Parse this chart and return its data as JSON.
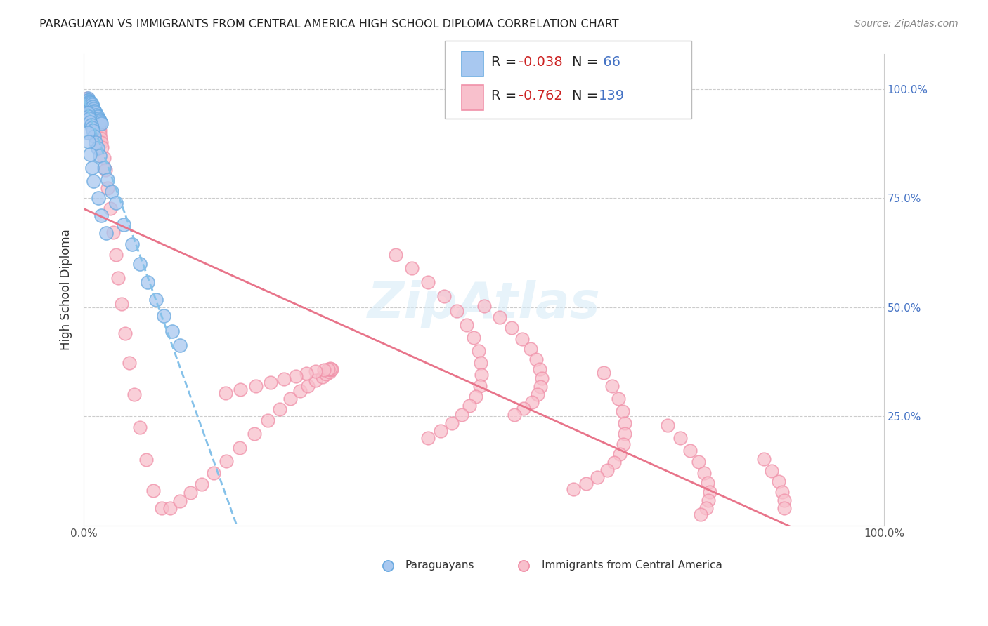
{
  "title": "PARAGUAYAN VS IMMIGRANTS FROM CENTRAL AMERICA HIGH SCHOOL DIPLOMA CORRELATION CHART",
  "source": "Source: ZipAtlas.com",
  "ylabel": "High School Diploma",
  "xlim": [
    0.0,
    1.0
  ],
  "ylim": [
    0.0,
    1.08
  ],
  "ytick_positions": [
    0.25,
    0.5,
    0.75,
    1.0
  ],
  "ytick_labels": [
    "25.0%",
    "50.0%",
    "75.0%",
    "100.0%"
  ],
  "grid_color": "#cccccc",
  "blue_face": "#a8c8f0",
  "blue_edge": "#6aaae0",
  "pink_face": "#f8c0cc",
  "pink_edge": "#f090a8",
  "blue_line_color": "#85C1E9",
  "pink_line_color": "#E8748A",
  "R_blue": -0.038,
  "N_blue": 66,
  "R_pink": -0.762,
  "N_pink": 139,
  "legend_label_blue": "Paraguayans",
  "legend_label_pink": "Immigrants from Central America",
  "blue_x": [
    0.005,
    0.005,
    0.005,
    0.006,
    0.006,
    0.007,
    0.007,
    0.007,
    0.008,
    0.008,
    0.008,
    0.009,
    0.009,
    0.009,
    0.01,
    0.01,
    0.01,
    0.011,
    0.011,
    0.012,
    0.012,
    0.013,
    0.013,
    0.014,
    0.014,
    0.015,
    0.015,
    0.016,
    0.016,
    0.017,
    0.018,
    0.019,
    0.02,
    0.021,
    0.022,
    0.005,
    0.006,
    0.007,
    0.008,
    0.009,
    0.01,
    0.011,
    0.013,
    0.015,
    0.017,
    0.02,
    0.025,
    0.03,
    0.035,
    0.04,
    0.05,
    0.06,
    0.07,
    0.08,
    0.09,
    0.1,
    0.11,
    0.12,
    0.005,
    0.006,
    0.008,
    0.01,
    0.012,
    0.018,
    0.022,
    0.028
  ],
  "blue_y": [
    0.98,
    0.975,
    0.97,
    0.975,
    0.968,
    0.972,
    0.965,
    0.958,
    0.97,
    0.963,
    0.955,
    0.968,
    0.96,
    0.952,
    0.965,
    0.958,
    0.95,
    0.96,
    0.952,
    0.955,
    0.948,
    0.95,
    0.943,
    0.948,
    0.94,
    0.945,
    0.938,
    0.94,
    0.932,
    0.938,
    0.933,
    0.93,
    0.928,
    0.925,
    0.922,
    0.945,
    0.938,
    0.932,
    0.925,
    0.918,
    0.912,
    0.905,
    0.892,
    0.878,
    0.865,
    0.848,
    0.82,
    0.793,
    0.765,
    0.74,
    0.69,
    0.645,
    0.6,
    0.558,
    0.518,
    0.48,
    0.445,
    0.413,
    0.9,
    0.88,
    0.85,
    0.82,
    0.79,
    0.75,
    0.71,
    0.67
  ],
  "pink_x": [
    0.004,
    0.005,
    0.005,
    0.006,
    0.006,
    0.007,
    0.007,
    0.007,
    0.008,
    0.008,
    0.009,
    0.009,
    0.009,
    0.01,
    0.01,
    0.01,
    0.011,
    0.011,
    0.012,
    0.012,
    0.013,
    0.013,
    0.014,
    0.014,
    0.015,
    0.015,
    0.016,
    0.017,
    0.018,
    0.019,
    0.02,
    0.02,
    0.021,
    0.022,
    0.023,
    0.025,
    0.027,
    0.03,
    0.033,
    0.037,
    0.04,
    0.043,
    0.047,
    0.052,
    0.057,
    0.063,
    0.07,
    0.078,
    0.087,
    0.097,
    0.108,
    0.12,
    0.133,
    0.147,
    0.162,
    0.178,
    0.195,
    0.213,
    0.23,
    0.245,
    0.258,
    0.27,
    0.28,
    0.29,
    0.298,
    0.303,
    0.307,
    0.309,
    0.31,
    0.308,
    0.305,
    0.3,
    0.29,
    0.278,
    0.265,
    0.25,
    0.233,
    0.215,
    0.196,
    0.177,
    0.5,
    0.52,
    0.535,
    0.548,
    0.558,
    0.565,
    0.57,
    0.572,
    0.571,
    0.567,
    0.56,
    0.55,
    0.538,
    0.39,
    0.41,
    0.43,
    0.45,
    0.466,
    0.478,
    0.487,
    0.493,
    0.496,
    0.497,
    0.495,
    0.49,
    0.482,
    0.472,
    0.46,
    0.446,
    0.43,
    0.65,
    0.66,
    0.668,
    0.673,
    0.676,
    0.676,
    0.674,
    0.67,
    0.663,
    0.654,
    0.642,
    0.628,
    0.612,
    0.73,
    0.745,
    0.758,
    0.768,
    0.775,
    0.78,
    0.782,
    0.781,
    0.778,
    0.771,
    0.85,
    0.86,
    0.868,
    0.873,
    0.875,
    0.875
  ],
  "pink_y": [
    0.98,
    0.978,
    0.972,
    0.975,
    0.968,
    0.972,
    0.965,
    0.958,
    0.968,
    0.96,
    0.965,
    0.957,
    0.95,
    0.962,
    0.954,
    0.946,
    0.958,
    0.95,
    0.953,
    0.945,
    0.948,
    0.94,
    0.943,
    0.935,
    0.938,
    0.93,
    0.932,
    0.925,
    0.918,
    0.91,
    0.905,
    0.897,
    0.888,
    0.878,
    0.867,
    0.843,
    0.815,
    0.773,
    0.727,
    0.672,
    0.62,
    0.567,
    0.508,
    0.44,
    0.372,
    0.3,
    0.225,
    0.15,
    0.08,
    0.04,
    0.04,
    0.055,
    0.075,
    0.095,
    0.12,
    0.148,
    0.178,
    0.21,
    0.24,
    0.267,
    0.29,
    0.308,
    0.32,
    0.332,
    0.34,
    0.347,
    0.352,
    0.356,
    0.358,
    0.359,
    0.358,
    0.356,
    0.353,
    0.348,
    0.342,
    0.335,
    0.328,
    0.32,
    0.312,
    0.303,
    0.503,
    0.478,
    0.453,
    0.428,
    0.404,
    0.38,
    0.358,
    0.337,
    0.318,
    0.3,
    0.283,
    0.268,
    0.254,
    0.62,
    0.59,
    0.558,
    0.525,
    0.492,
    0.46,
    0.43,
    0.4,
    0.372,
    0.345,
    0.32,
    0.296,
    0.274,
    0.253,
    0.234,
    0.217,
    0.2,
    0.35,
    0.32,
    0.29,
    0.262,
    0.235,
    0.21,
    0.186,
    0.164,
    0.144,
    0.126,
    0.11,
    0.096,
    0.083,
    0.23,
    0.2,
    0.172,
    0.145,
    0.12,
    0.097,
    0.076,
    0.057,
    0.04,
    0.025,
    0.152,
    0.125,
    0.1,
    0.077,
    0.057,
    0.04
  ]
}
